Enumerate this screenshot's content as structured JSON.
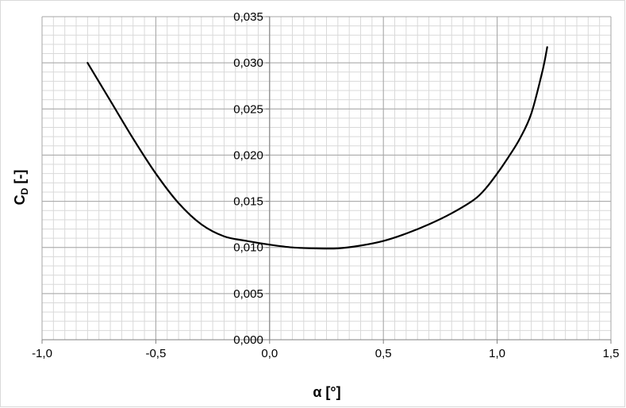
{
  "chart_data": {
    "type": "line",
    "xlabel": "α [°]",
    "ylabel_main": "C",
    "ylabel_sub": "D",
    "ylabel_rest": " [-]",
    "xlim": [
      -1.0,
      1.5
    ],
    "ylim": [
      0.0,
      0.035
    ],
    "x_ticks": [
      -1.0,
      -0.5,
      0.0,
      0.5,
      1.0,
      1.5
    ],
    "x_tick_labels": [
      "-1,0",
      "-0,5",
      "0,0",
      "0,5",
      "1,0",
      "1,5"
    ],
    "y_ticks": [
      0.0,
      0.005,
      0.01,
      0.015,
      0.02,
      0.025,
      0.03,
      0.035
    ],
    "y_tick_labels": [
      "0,000",
      "0,005",
      "0,010",
      "0,015",
      "0,020",
      "0,025",
      "0,030",
      "0,035"
    ],
    "grid": true,
    "series": [
      {
        "color": "#000000",
        "x": [
          -0.8,
          -0.7,
          -0.6,
          -0.5,
          -0.4,
          -0.3,
          -0.2,
          -0.1,
          0.0,
          0.1,
          0.2,
          0.3,
          0.4,
          0.5,
          0.6,
          0.7,
          0.8,
          0.9,
          0.95,
          1.0,
          1.05,
          1.1,
          1.15,
          1.2,
          1.22
        ],
        "y": [
          0.03,
          0.0259,
          0.0218,
          0.018,
          0.0148,
          0.0125,
          0.0112,
          0.0107,
          0.0103,
          0.01,
          0.0099,
          0.0099,
          0.0102,
          0.0107,
          0.0115,
          0.0125,
          0.0137,
          0.0152,
          0.0164,
          0.018,
          0.0198,
          0.0218,
          0.0245,
          0.0292,
          0.0317
        ]
      }
    ]
  }
}
